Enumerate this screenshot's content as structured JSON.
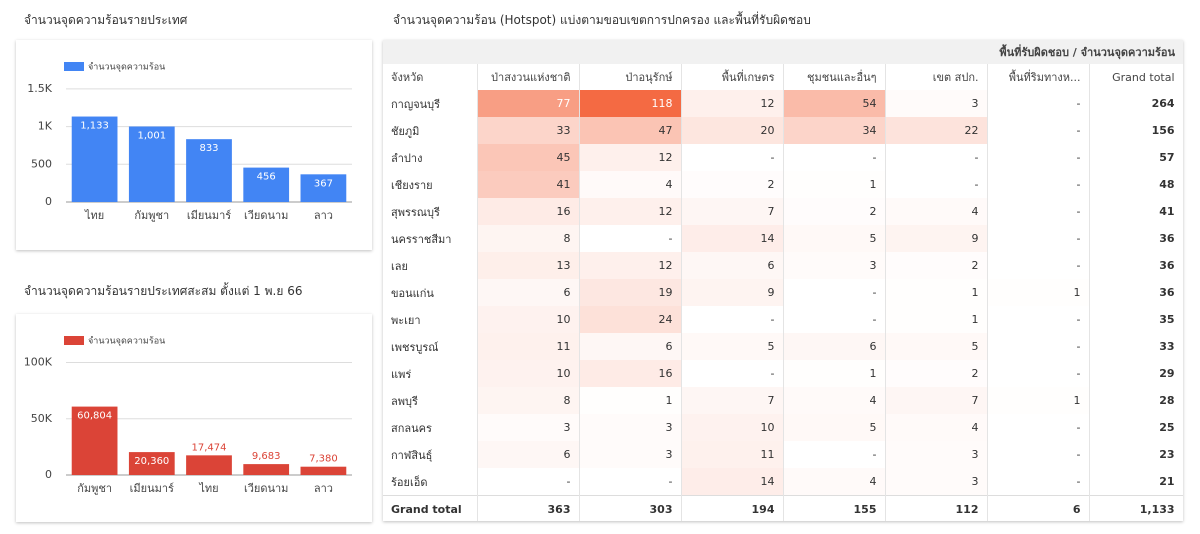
{
  "chart_data": [
    {
      "type": "bar",
      "title": "จำนวนจุดความร้อนรายประเทศ",
      "legend": "จำนวนจุดความร้อน",
      "color": "#4285f4",
      "categories": [
        "ไทย",
        "กัมพูชา",
        "เมียนมาร์",
        "เวียดนาม",
        "ลาว"
      ],
      "values": [
        1133,
        1001,
        833,
        456,
        367
      ],
      "value_labels": [
        "1,133",
        "1,001",
        "833",
        "456",
        "367"
      ],
      "ylim": [
        0,
        1750
      ],
      "yticks": [
        0,
        500,
        {
          "value": 1000,
          "label": "1K"
        },
        {
          "value": 1500,
          "label": "1.5K"
        }
      ],
      "grid": true
    },
    {
      "type": "bar",
      "title": "จำนวนจุดความร้อนรายประเทศสะสม ตั้งแต่ 1 พ.ย 66",
      "legend": "จำนวนจุดความร้อน",
      "color": "#db4437",
      "categories": [
        "กัมพูชา",
        "เมียนมาร์",
        "ไทย",
        "เวียดนาม",
        "ลาว"
      ],
      "values": [
        60804,
        20360,
        17474,
        9683,
        7380
      ],
      "value_labels": [
        "60,804",
        "20,360",
        "17,474",
        "9,683",
        "7,380"
      ],
      "ylim": [
        0,
        120000
      ],
      "yticks": [
        0,
        {
          "value": 50000,
          "label": "50K"
        },
        {
          "value": 100000,
          "label": "100K"
        }
      ],
      "grid": true
    }
  ],
  "table": {
    "title": "จำนวนจุดความร้อน (Hotspot) แบ่งตามขอบเขตการปกครอง และพื้นที่รับผิดชอบ",
    "header_group": "พื้นที่รับผิดชอบ / จำนวนจุดความร้อน",
    "columns": [
      "จังหวัด",
      "ป่าสงวนแห่งชาติ",
      "ป่าอนุรักษ์",
      "พื้นที่เกษตร",
      "ชุมชนและอื่นๆ",
      "เขต สปก.",
      "พื้นที่ริมทางห...",
      "Grand total"
    ],
    "rows": [
      [
        "กาญจนบุรี",
        77,
        118,
        12,
        54,
        3,
        "-",
        264
      ],
      [
        "ชัยภูมิ",
        33,
        47,
        20,
        34,
        22,
        "-",
        156
      ],
      [
        "ลำปาง",
        45,
        12,
        "-",
        "-",
        "-",
        "-",
        57
      ],
      [
        "เชียงราย",
        41,
        4,
        2,
        1,
        "-",
        "-",
        48
      ],
      [
        "สุพรรณบุรี",
        16,
        12,
        7,
        2,
        4,
        "-",
        41
      ],
      [
        "นครราชสีมา",
        8,
        "-",
        14,
        5,
        9,
        "-",
        36
      ],
      [
        "เลย",
        13,
        12,
        6,
        3,
        2,
        "-",
        36
      ],
      [
        "ขอนแก่น",
        6,
        19,
        9,
        "-",
        1,
        1,
        36
      ],
      [
        "พะเยา",
        10,
        24,
        "-",
        "-",
        1,
        "-",
        35
      ],
      [
        "เพชรบูรณ์",
        11,
        6,
        5,
        6,
        5,
        "-",
        33
      ],
      [
        "แพร่",
        10,
        16,
        "-",
        1,
        2,
        "-",
        29
      ],
      [
        "ลพบุรี",
        8,
        1,
        7,
        4,
        7,
        1,
        28
      ],
      [
        "สกลนคร",
        3,
        3,
        10,
        5,
        4,
        "-",
        25
      ],
      [
        "กาฬสินธุ์",
        6,
        3,
        11,
        "-",
        3,
        "-",
        23
      ],
      [
        "ร้อยเอ็ด",
        "-",
        "-",
        14,
        4,
        3,
        "-",
        21
      ]
    ],
    "total_row": [
      "Grand total",
      363,
      303,
      194,
      155,
      112,
      6,
      "1,133"
    ]
  }
}
